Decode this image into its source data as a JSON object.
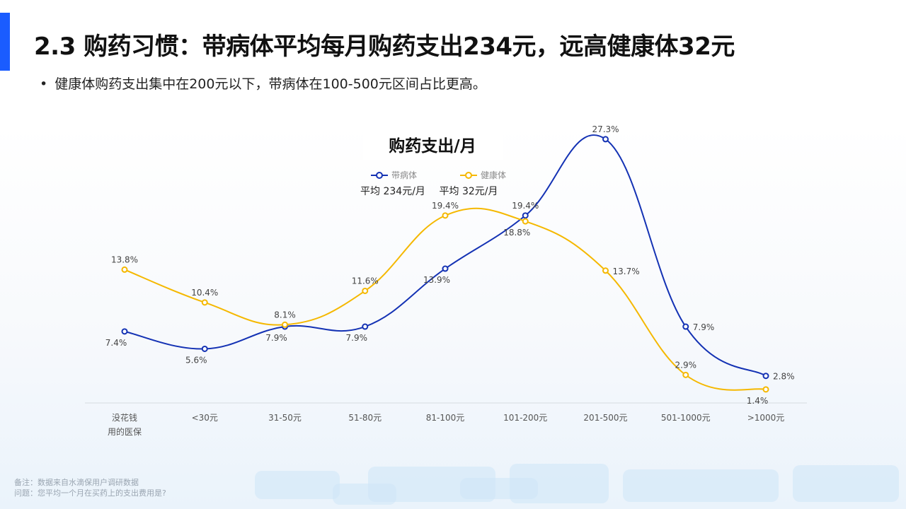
{
  "header": {
    "title": "2.3 购药习惯：带病体平均每月购药支出234元，远高健康体32元",
    "bullet": "健康体购药支出集中在200元以下，带病体在100-500元区间占比更高。"
  },
  "colors": {
    "accent": "#1a5cff",
    "series_sick": "#1432b4",
    "series_healthy": "#f5b800"
  },
  "chart_data": {
    "type": "line",
    "title": "购药支出/月",
    "categories": [
      [
        "没花钱",
        "用的医保"
      ],
      [
        "<30元"
      ],
      [
        "31-50元"
      ],
      [
        "51-80元"
      ],
      [
        "81-100元"
      ],
      [
        "101-200元"
      ],
      [
        "201-500元"
      ],
      [
        "501-1000元"
      ],
      [
        ">1000元"
      ]
    ],
    "series": [
      {
        "name": "带病体",
        "avg_label": "平均 234元/月",
        "color": "#1432b4",
        "values": [
          7.4,
          5.6,
          7.9,
          7.9,
          13.9,
          19.4,
          27.3,
          7.9,
          2.8
        ],
        "labels": [
          "7.4%",
          "5.6%",
          "7.9%",
          "7.9%",
          "13.9%",
          "19.4%",
          "27.3%",
          "7.9%",
          "2.8%"
        ]
      },
      {
        "name": "健康体",
        "avg_label": "平均 32元/月",
        "color": "#f5b800",
        "values": [
          13.8,
          10.4,
          8.1,
          11.6,
          19.4,
          18.8,
          13.7,
          2.9,
          1.4
        ],
        "labels": [
          "13.8%",
          "10.4%",
          "8.1%",
          "11.6%",
          "19.4%",
          "18.8%",
          "13.7%",
          "2.9%",
          "1.4%"
        ]
      }
    ],
    "ylim": [
      0,
      30
    ],
    "grid": false,
    "legend_position": "top-center"
  },
  "footer": {
    "note": "备注：数据来自水滴保用户调研数据",
    "question": "问题：您平均一个月在买药上的支出费用是?"
  }
}
